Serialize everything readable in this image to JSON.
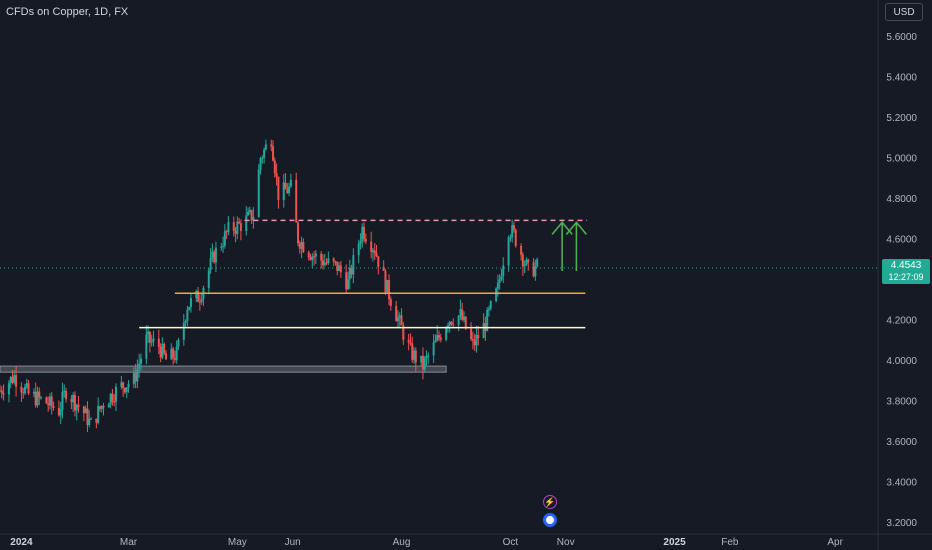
{
  "header": {
    "symbol_title": "CFDs on Copper, 1D, FX",
    "currency_label": "USD"
  },
  "price_badge": {
    "price": "4.4543",
    "countdown": "12:27:09",
    "color": "#22ab94"
  },
  "event_icons": [
    "lightning-event-icon",
    "us-flag-event-icon"
  ],
  "chart_data": {
    "type": "candlestick",
    "instrument": "CFDs on Copper",
    "interval": "1D",
    "x_tick_labels": [
      "2024",
      "Mar",
      "May",
      "Jun",
      "Aug",
      "Oct",
      "Nov",
      "2025",
      "Feb",
      "Apr"
    ],
    "y_tick_labels": [
      "5.6000",
      "5.4000",
      "5.2000",
      "5.0000",
      "4.8000",
      "4.6000",
      "4.4000",
      "4.2000",
      "4.0000",
      "3.8000",
      "3.6000",
      "3.4000",
      "3.2000"
    ],
    "ylim": [
      3.17,
      5.67
    ],
    "xlim": [
      "2023-12-20",
      "2025-04-25"
    ],
    "grid": false,
    "current_price": 4.4543,
    "colors": {
      "up": "#26a69a",
      "down": "#ef5350",
      "background": "#161a25"
    },
    "price_path": [
      [
        "2023-12-20",
        3.85
      ],
      [
        "2023-12-28",
        3.92
      ],
      [
        "2024-01-05",
        3.83
      ],
      [
        "2024-01-15",
        3.79
      ],
      [
        "2024-01-22",
        3.75
      ],
      [
        "2024-01-26",
        3.85
      ],
      [
        "2024-02-05",
        3.74
      ],
      [
        "2024-02-09",
        3.68
      ],
      [
        "2024-02-16",
        3.79
      ],
      [
        "2024-02-26",
        3.87
      ],
      [
        "2024-03-04",
        3.9
      ],
      [
        "2024-03-11",
        4.1
      ],
      [
        "2024-03-18",
        4.07
      ],
      [
        "2024-03-22",
        4.0
      ],
      [
        "2024-03-28",
        4.03
      ],
      [
        "2024-04-03",
        4.27
      ],
      [
        "2024-04-10",
        4.32
      ],
      [
        "2024-04-18",
        4.52
      ],
      [
        "2024-04-26",
        4.64
      ],
      [
        "2024-05-03",
        4.67
      ],
      [
        "2024-05-10",
        4.72
      ],
      [
        "2024-05-14",
        5.0
      ],
      [
        "2024-05-20",
        5.1
      ],
      [
        "2024-05-24",
        4.82
      ],
      [
        "2024-05-31",
        4.85
      ],
      [
        "2024-06-04",
        4.6
      ],
      [
        "2024-06-12",
        4.52
      ],
      [
        "2024-06-20",
        4.48
      ],
      [
        "2024-06-26",
        4.46
      ],
      [
        "2024-07-02",
        4.38
      ],
      [
        "2024-07-10",
        4.65
      ],
      [
        "2024-07-17",
        4.55
      ],
      [
        "2024-07-24",
        4.35
      ],
      [
        "2024-07-31",
        4.18
      ],
      [
        "2024-08-06",
        4.04
      ],
      [
        "2024-08-13",
        3.97
      ],
      [
        "2024-08-20",
        4.08
      ],
      [
        "2024-08-27",
        4.2
      ],
      [
        "2024-09-03",
        4.22
      ],
      [
        "2024-09-10",
        4.07
      ],
      [
        "2024-09-17",
        4.18
      ],
      [
        "2024-09-24",
        4.35
      ],
      [
        "2024-09-30",
        4.65
      ],
      [
        "2024-10-03",
        4.62
      ],
      [
        "2024-10-07",
        4.53
      ],
      [
        "2024-10-11",
        4.44
      ],
      [
        "2024-10-16",
        4.46
      ]
    ],
    "drawings": [
      {
        "kind": "resistance_dashed",
        "price": 4.69,
        "from": "2024-05-05",
        "to": "2024-11-13",
        "color": "#f48fb1"
      },
      {
        "kind": "support_line",
        "price": 4.33,
        "from": "2024-03-27",
        "to": "2024-11-12",
        "color": "#ffa726"
      },
      {
        "kind": "support_line",
        "price": 4.16,
        "from": "2024-03-07",
        "to": "2024-11-12",
        "color": "#fff9c4"
      },
      {
        "kind": "support_zone",
        "price_low": 3.94,
        "price_high": 3.97,
        "from": "2023-12-20",
        "to": "2024-08-26",
        "color": "#4a4e57"
      },
      {
        "kind": "up_arrow",
        "date": "2024-10-30",
        "from_price": 4.44,
        "to_price": 4.68,
        "color": "#4caf50"
      },
      {
        "kind": "up_arrow",
        "date": "2024-11-07",
        "from_price": 4.44,
        "to_price": 4.68,
        "color": "#4caf50"
      }
    ]
  }
}
